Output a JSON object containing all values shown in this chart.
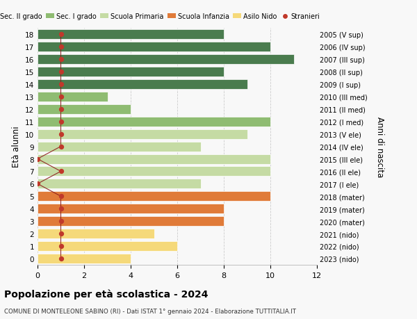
{
  "ages": [
    18,
    17,
    16,
    15,
    14,
    13,
    12,
    11,
    10,
    9,
    8,
    7,
    6,
    5,
    4,
    3,
    2,
    1,
    0
  ],
  "right_labels": [
    "2005 (V sup)",
    "2006 (IV sup)",
    "2007 (III sup)",
    "2008 (II sup)",
    "2009 (I sup)",
    "2010 (III med)",
    "2011 (II med)",
    "2012 (I med)",
    "2013 (V ele)",
    "2014 (IV ele)",
    "2015 (III ele)",
    "2016 (II ele)",
    "2017 (I ele)",
    "2018 (mater)",
    "2019 (mater)",
    "2020 (mater)",
    "2021 (nido)",
    "2022 (nido)",
    "2023 (nido)"
  ],
  "bar_values": [
    8,
    10,
    11,
    8,
    9,
    3,
    4,
    10,
    9,
    7,
    10,
    10,
    7,
    10,
    8,
    8,
    5,
    6,
    4
  ],
  "bar_colors": [
    "#4a7c4e",
    "#4a7c4e",
    "#4a7c4e",
    "#4a7c4e",
    "#4a7c4e",
    "#8fbc72",
    "#8fbc72",
    "#8fbc72",
    "#c5dba4",
    "#c5dba4",
    "#c5dba4",
    "#c5dba4",
    "#c5dba4",
    "#e07b39",
    "#e07b39",
    "#e07b39",
    "#f5d97a",
    "#f5d97a",
    "#f5d97a"
  ],
  "stranieri_x": [
    1,
    1,
    1,
    1,
    1,
    1,
    1,
    1,
    1,
    1,
    0,
    1,
    0,
    1,
    1,
    1,
    1,
    1,
    1
  ],
  "title": "Popolazione per età scolastica - 2024",
  "subtitle": "COMUNE DI MONTELEONE SABINO (RI) - Dati ISTAT 1° gennaio 2024 - Elaborazione TUTTITALIA.IT",
  "ylabel_left": "Età alunni",
  "ylabel_right": "Anni di nascita",
  "xlim": [
    0,
    12
  ],
  "ylim": [
    -0.5,
    18.5
  ],
  "legend_labels": [
    "Sec. II grado",
    "Sec. I grado",
    "Scuola Primaria",
    "Scuola Infanzia",
    "Asilo Nido",
    "Stranieri"
  ],
  "legend_colors": [
    "#4a7c4e",
    "#8fbc72",
    "#c5dba4",
    "#e07b39",
    "#f5d97a",
    "#c0392b"
  ],
  "bg_color": "#f8f8f8",
  "grid_color": "#cccccc",
  "bar_height": 0.78
}
